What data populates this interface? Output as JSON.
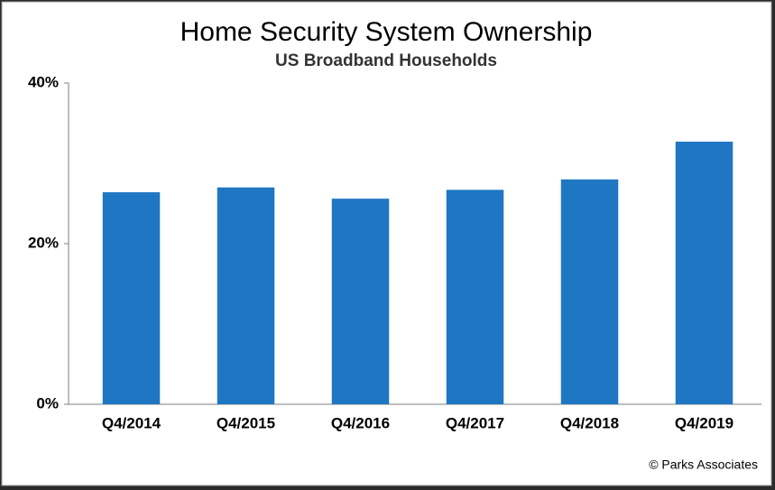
{
  "chart_data": {
    "type": "bar",
    "title": "Home Security System Ownership",
    "subtitle": "US Broadband Households",
    "source": "© Parks Associates",
    "categories": [
      "Q4/2014",
      "Q4/2015",
      "Q4/2016",
      "Q4/2017",
      "Q4/2018",
      "Q4/2019"
    ],
    "values": [
      26.4,
      27.0,
      25.6,
      26.7,
      28.0,
      32.7
    ],
    "color": "#1f77c3",
    "ylim": [
      0,
      40
    ],
    "yticks": [
      {
        "value": 0,
        "label": "0%"
      },
      {
        "value": 20,
        "label": "20%"
      },
      {
        "value": 40,
        "label": "40%"
      }
    ],
    "grid": false
  }
}
